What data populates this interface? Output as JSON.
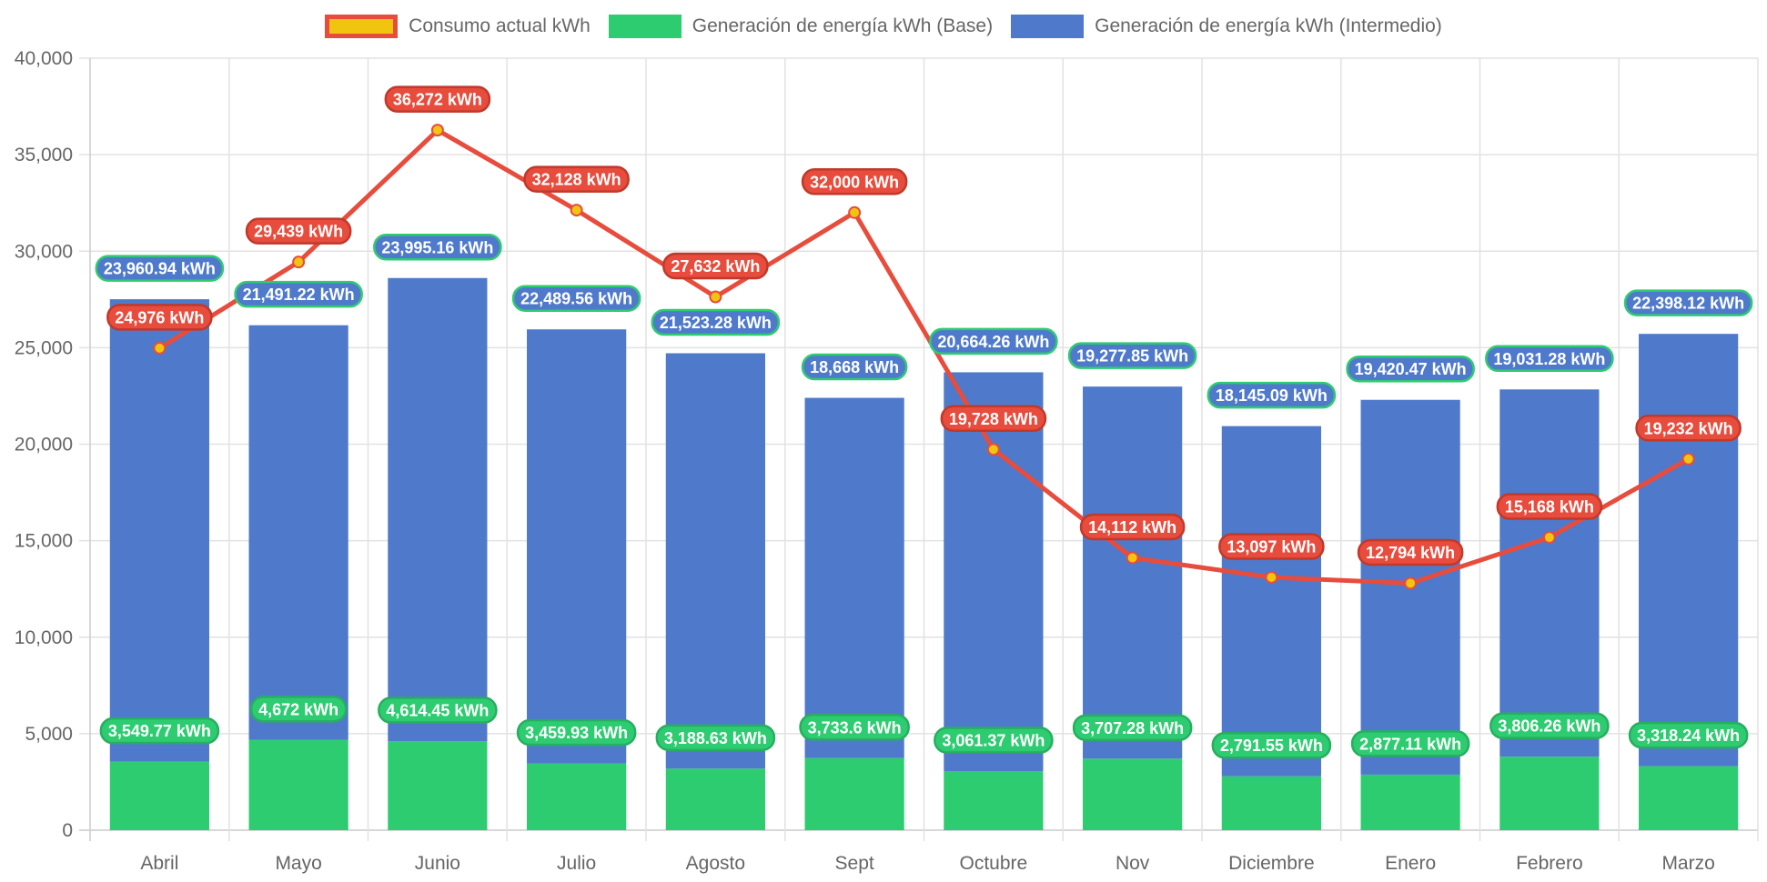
{
  "chart_data": {
    "type": "bar",
    "stacked": true,
    "categories": [
      "Abril",
      "Mayo",
      "Junio",
      "Julio",
      "Agosto",
      "Sept",
      "Octubre",
      "Nov",
      "Diciembre",
      "Enero",
      "Febrero",
      "Marzo"
    ],
    "series": [
      {
        "name": "Consumo actual kWh",
        "type": "line",
        "color": "#e74c3c",
        "point_color": "#f1c40f",
        "values": [
          24976,
          29439,
          36272,
          32128,
          27632,
          32000,
          19728,
          14112,
          13097,
          12794,
          15168,
          19232
        ],
        "labels": [
          "24,976 kWh",
          "29,439 kWh",
          "36,272 kWh",
          "32,128 kWh",
          "27,632 kWh",
          "32,000 kWh",
          "19,728 kWh",
          "14,112 kWh",
          "13,097 kWh",
          "12,794 kWh",
          "15,168 kWh",
          "19,232 kWh"
        ]
      },
      {
        "name": "Generación de energía kWh (Base)",
        "type": "bar",
        "color": "#2ecc71",
        "values": [
          3549.77,
          4672,
          4614.45,
          3459.93,
          3188.63,
          3733.6,
          3061.37,
          3707.28,
          2791.55,
          2877.11,
          3806.26,
          3318.24
        ],
        "labels": [
          "3,549.77 kWh",
          "4,672 kWh",
          "4,614.45 kWh",
          "3,459.93 kWh",
          "3,188.63 kWh",
          "3,733.6 kWh",
          "3,061.37 kWh",
          "3,707.28 kWh",
          "2,791.55 kWh",
          "2,877.11 kWh",
          "3,806.26 kWh",
          "3,318.24 kWh"
        ]
      },
      {
        "name": "Generación de energía kWh (Intermedio)",
        "type": "bar",
        "color": "#4f7acb",
        "values": [
          23960.94,
          21491.22,
          23995.16,
          22489.56,
          21523.28,
          18668,
          20664.26,
          19277.85,
          18145.09,
          19420.47,
          19031.28,
          22398.12
        ],
        "labels": [
          "23,960.94 kWh",
          "21,491.22 kWh",
          "23,995.16 kWh",
          "22,489.56 kWh",
          "21,523.28 kWh",
          "18,668 kWh",
          "20,664.26 kWh",
          "19,277.85 kWh",
          "18,145.09 kWh",
          "19,420.47 kWh",
          "19,031.28 kWh",
          "22,398.12 kWh"
        ]
      }
    ],
    "ylim": [
      0,
      40000
    ],
    "yticks": [
      "0",
      "5,000",
      "10,000",
      "15,000",
      "20,000",
      "25,000",
      "30,000",
      "35,000",
      "40,000"
    ],
    "grid": true,
    "legend_position": "top",
    "title": "",
    "xlabel": "",
    "ylabel": ""
  }
}
